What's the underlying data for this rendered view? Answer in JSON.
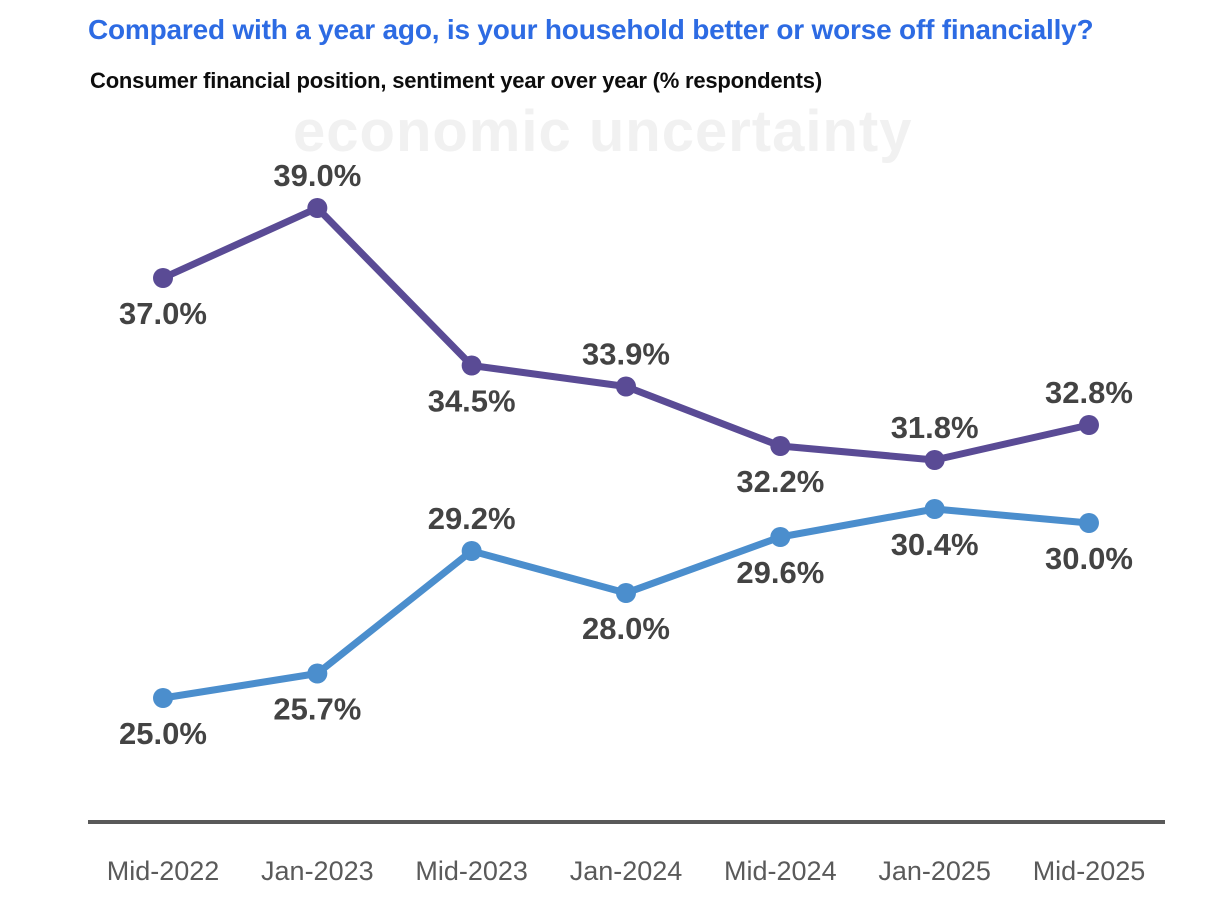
{
  "header": {
    "title": "Compared with a year ago, is your household better or worse off financially?",
    "title_color": "#2d6be3",
    "subtitle": "Consumer financial position, sentiment year over year (% respondents)",
    "ghost_watermark": "economic uncertainty"
  },
  "chart_data": {
    "type": "line",
    "title": "Compared with a year ago, is your household better or worse off financially?",
    "subtitle": "Consumer financial position, sentiment year over year (% respondents)",
    "categories": [
      "Mid-2022",
      "Jan-2023",
      "Mid-2023",
      "Jan-2024",
      "Mid-2024",
      "Jan-2025",
      "Mid-2025"
    ],
    "series": [
      {
        "id": "purple-line",
        "color": "#5a4b95",
        "values": [
          37.0,
          39.0,
          34.5,
          33.9,
          32.2,
          31.8,
          32.8
        ],
        "data_labels": [
          "37.0%",
          "39.0%",
          "34.5%",
          "33.9%",
          "32.2%",
          "31.8%",
          "32.8%"
        ],
        "label_placement": [
          "below",
          "above",
          "below",
          "above",
          "below",
          "above",
          "above"
        ]
      },
      {
        "id": "blue-line",
        "color": "#4b8ecd",
        "values": [
          25.0,
          25.7,
          29.2,
          28.0,
          29.6,
          30.4,
          30.0
        ],
        "data_labels": [
          "25.0%",
          "25.7%",
          "29.2%",
          "28.0%",
          "29.6%",
          "30.4%",
          "30.0%"
        ],
        "label_placement": [
          "below",
          "below",
          "above",
          "below",
          "below",
          "below",
          "below"
        ]
      }
    ],
    "ylim": [
      24,
      40
    ],
    "grid": false,
    "legend": "none",
    "y_axis": "hidden",
    "data_label_color": "#434343",
    "axis_line_color": "#595959",
    "tick_label_color": "#5a5a5a"
  }
}
